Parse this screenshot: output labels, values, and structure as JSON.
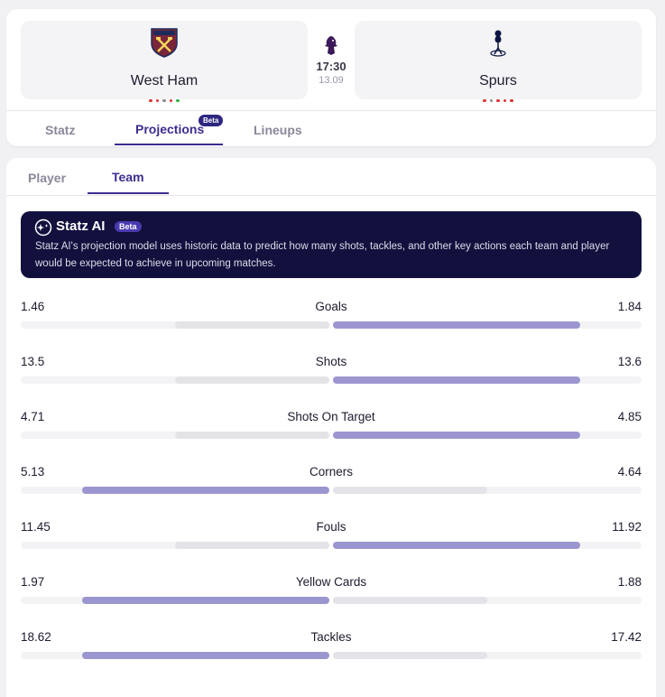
{
  "match": {
    "home": {
      "name": "West Ham",
      "crest": "west-ham-crest-icon",
      "form_colors": [
        "#e03131",
        "#e03131",
        "#8a8a8a",
        "#e03131",
        "#2fb344"
      ]
    },
    "away": {
      "name": "Spurs",
      "crest": "spurs-crest-icon",
      "form_colors": [
        "#e03131",
        "#8a8a8a",
        "#e03131",
        "#e03131",
        "#e03131"
      ]
    },
    "kickoff_time": "17:30",
    "kickoff_date": "13.09",
    "league_icon": "premier-league-lion-icon"
  },
  "tabs": {
    "statz": "Statz",
    "projections": "Projections",
    "projections_badge": "Beta",
    "lineups": "Lineups"
  },
  "sub_tabs": {
    "player": "Player",
    "team": "Team"
  },
  "ai_banner": {
    "title": "Statz AI",
    "badge": "Beta",
    "description": "Statz AI's projection model uses historic data to predict how many shots, tackles, and other key actions each team and player would be expected to achieve in upcoming matches."
  },
  "colors": {
    "bar_leader": "#9b96cf",
    "bar_other": "#e4e4e8",
    "accent": "#3b2d8f",
    "banner_bg": "#12113e"
  },
  "stats": [
    {
      "label": "Goals",
      "home": "1.46",
      "away": "1.84",
      "home_share": 0.5,
      "away_share": 0.8
    },
    {
      "label": "Shots",
      "home": "13.5",
      "away": "13.6",
      "home_share": 0.5,
      "away_share": 0.8
    },
    {
      "label": "Shots On Target",
      "home": "4.71",
      "away": "4.85",
      "home_share": 0.5,
      "away_share": 0.8
    },
    {
      "label": "Corners",
      "home": "5.13",
      "away": "4.64",
      "home_share": 0.8,
      "away_share": 0.5
    },
    {
      "label": "Fouls",
      "home": "11.45",
      "away": "11.92",
      "home_share": 0.5,
      "away_share": 0.8
    },
    {
      "label": "Yellow Cards",
      "home": "1.97",
      "away": "1.88",
      "home_share": 0.8,
      "away_share": 0.5
    },
    {
      "label": "Tackles",
      "home": "18.62",
      "away": "17.42",
      "home_share": 0.8,
      "away_share": 0.5
    }
  ]
}
